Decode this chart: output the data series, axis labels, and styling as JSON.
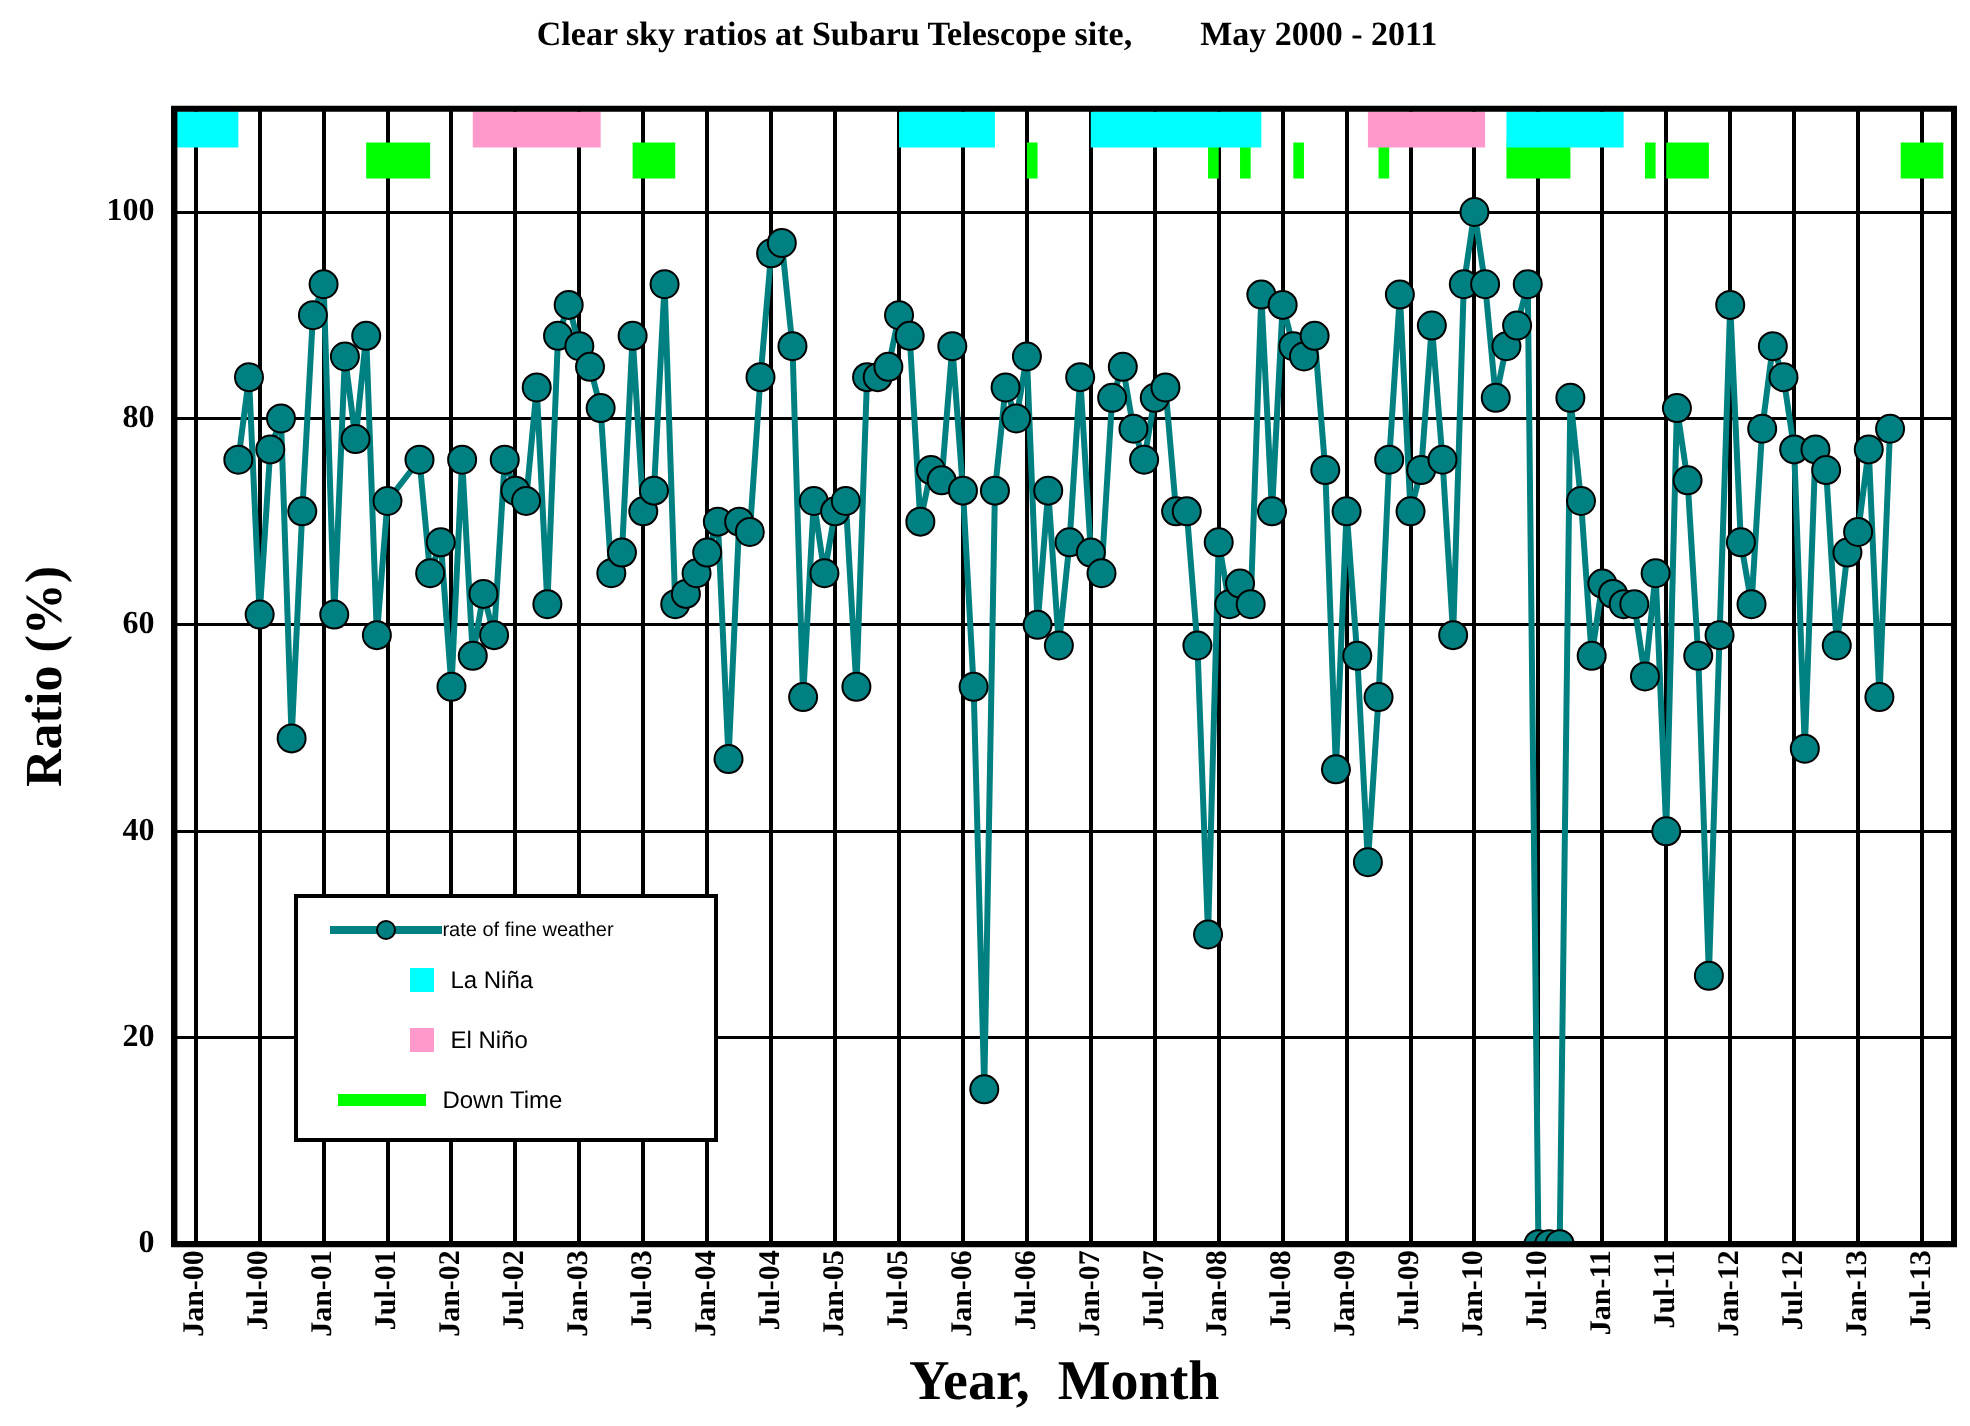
{
  "chart_data": {
    "type": "line",
    "title": "Clear sky ratios at Subaru Telescope site,        May 2000 - 2011",
    "xlabel": "Year,  Month",
    "ylabel": "Ratio (%)",
    "x": [
      "2000-05",
      "2000-06",
      "2000-07",
      "2000-08",
      "2000-09",
      "2000-10",
      "2000-11",
      "2000-12",
      "2001-01",
      "2001-02",
      "2001-03",
      "2001-04",
      "2001-05",
      "2001-06",
      "2001-07",
      "2001-10",
      "2001-11",
      "2001-12",
      "2002-01",
      "2002-02",
      "2002-03",
      "2002-04",
      "2002-05",
      "2002-06",
      "2002-07",
      "2002-08",
      "2002-09",
      "2002-10",
      "2002-11",
      "2002-12",
      "2003-01",
      "2003-02",
      "2003-03",
      "2003-04",
      "2003-05",
      "2003-06",
      "2003-07",
      "2003-08",
      "2003-09",
      "2003-10",
      "2003-11",
      "2003-12",
      "2004-01",
      "2004-02",
      "2004-03",
      "2004-04",
      "2004-05",
      "2004-06",
      "2004-07",
      "2004-08",
      "2004-09",
      "2004-10",
      "2004-11",
      "2004-12",
      "2005-01",
      "2005-02",
      "2005-03",
      "2005-04",
      "2005-05",
      "2005-06",
      "2005-07",
      "2005-08",
      "2005-09",
      "2005-10",
      "2005-11",
      "2005-12",
      "2006-01",
      "2006-02",
      "2006-03",
      "2006-04",
      "2006-05",
      "2006-06",
      "2006-07",
      "2006-08",
      "2006-09",
      "2006-10",
      "2006-11",
      "2006-12",
      "2007-01",
      "2007-02",
      "2007-03",
      "2007-04",
      "2007-05",
      "2007-06",
      "2007-07",
      "2007-08",
      "2007-09",
      "2007-10",
      "2007-11",
      "2007-12",
      "2008-01",
      "2008-02",
      "2008-03",
      "2008-04",
      "2008-05",
      "2008-06",
      "2008-07",
      "2008-08",
      "2008-09",
      "2008-10",
      "2008-11",
      "2008-12",
      "2009-01",
      "2009-02",
      "2009-03",
      "2009-04",
      "2009-05",
      "2009-06",
      "2009-07",
      "2009-08",
      "2009-09",
      "2009-10",
      "2009-11",
      "2009-12",
      "2010-01",
      "2010-02",
      "2010-03",
      "2010-04",
      "2010-05",
      "2010-06",
      "2010-07",
      "2010-08",
      "2010-09",
      "2010-10",
      "2010-11",
      "2010-12",
      "2011-01",
      "2011-02",
      "2011-03",
      "2011-04",
      "2011-05",
      "2011-06",
      "2011-07",
      "2011-08",
      "2011-09",
      "2011-10",
      "2011-11",
      "2011-12",
      "2012-01",
      "2012-02",
      "2012-03",
      "2012-04",
      "2012-05",
      "2012-06",
      "2012-07",
      "2012-08",
      "2012-09",
      "2012-10",
      "2012-11",
      "2012-12",
      "2013-01",
      "2013-02",
      "2013-03",
      "2013-04"
    ],
    "series": [
      {
        "name": "rate of fine weather",
        "color": "#008080",
        "values": [
          76,
          84,
          61,
          77,
          80,
          49,
          71,
          90,
          93,
          61,
          86,
          78,
          88,
          59,
          72,
          76,
          65,
          68,
          54,
          76,
          57,
          63,
          59,
          76,
          73,
          72,
          83,
          62,
          88,
          91,
          87,
          85,
          81,
          65,
          67,
          88,
          71,
          73,
          93,
          62,
          63,
          65,
          67,
          70,
          47,
          70,
          69,
          84,
          96,
          97,
          87,
          53,
          72,
          65,
          71,
          72,
          54,
          84,
          84,
          85,
          90,
          88,
          70,
          75,
          74,
          87,
          73,
          54,
          15,
          73,
          83,
          80,
          86,
          60,
          73,
          58,
          68,
          84,
          67,
          65,
          82,
          85,
          79,
          76,
          82,
          83,
          71,
          71,
          58,
          30,
          68,
          62,
          64,
          62,
          92,
          71,
          91,
          87,
          86,
          88,
          75,
          46,
          71,
          57,
          37,
          53,
          76,
          92,
          71,
          75,
          89,
          76,
          59,
          93,
          100,
          93,
          82,
          87,
          89,
          93,
          0,
          0,
          0,
          82,
          72,
          57,
          64,
          63,
          62,
          62,
          55,
          65,
          40,
          81,
          74,
          57,
          26,
          59,
          91,
          68,
          62,
          79,
          87,
          84,
          77,
          48,
          77,
          75,
          58,
          67,
          69,
          77,
          53,
          79
        ]
      },
      {
        "name": "La Niña",
        "color": "#00ffff",
        "marker": "none",
        "x": [
          "1999-11",
          "2000-05"
        ],
        "values": [
          108,
          108
        ]
      },
      {
        "color": "#00ffff",
        "marker": "none",
        "x": [
          "2005-07",
          "2006-04"
        ],
        "values": [
          108,
          108
        ]
      },
      {
        "color": "#00ffff",
        "marker": "none",
        "x": [
          "2007-01",
          "2008-05"
        ],
        "values": [
          108,
          108
        ]
      },
      {
        "color": "#00ffff",
        "marker": "none",
        "x": [
          "2010-04",
          "2011-03"
        ],
        "values": [
          108,
          108
        ]
      },
      {
        "name": "El Niño",
        "color": "#ff99cc",
        "marker": "none",
        "x": [
          "2002-03",
          "2003-03"
        ],
        "values": [
          108,
          108
        ]
      },
      {
        "color": "#ff99cc",
        "marker": "none",
        "x": [
          "2009-03",
          "2010-02"
        ],
        "values": [
          108,
          108
        ]
      },
      {
        "name": "Down Time",
        "color": "#00ff00",
        "marker": "none",
        "line_style": "solid",
        "x": [
          "2001-05",
          "2001-11"
        ],
        "values": [
          105,
          105
        ]
      },
      {
        "color": "#00ff00",
        "marker": "none",
        "line_style": "solid",
        "x": [
          "2003-06",
          "2003-10"
        ],
        "values": [
          105,
          105
        ]
      },
      {
        "color": "#00ff00",
        "marker": "none",
        "line_style": "solid",
        "x": [
          "2006-07",
          "2006-08"
        ],
        "values": [
          105,
          105
        ]
      },
      {
        "color": "#00ff00",
        "marker": "none",
        "line_style": "solid",
        "x": [
          "2007-12",
          "2008-01"
        ],
        "values": [
          105,
          105
        ]
      },
      {
        "color": "#00ff00",
        "marker": "none",
        "line_style": "solid",
        "x": [
          "2008-03",
          "2008-04"
        ],
        "values": [
          105,
          105
        ]
      },
      {
        "color": "#00ff00",
        "marker": "none",
        "line_style": "solid",
        "x": [
          "2008-08",
          "2008-09"
        ],
        "values": [
          105,
          105
        ]
      },
      {
        "color": "#00ff00",
        "marker": "none",
        "line_style": "solid",
        "x": [
          "2009-04",
          "2009-05"
        ],
        "values": [
          105,
          105
        ]
      },
      {
        "color": "#00ff00",
        "marker": "none",
        "line_style": "solid",
        "x": [
          "2010-04",
          "2010-10"
        ],
        "values": [
          105,
          105
        ]
      },
      {
        "color": "#00ff00",
        "marker": "none",
        "line_style": "solid",
        "x": [
          "2011-05",
          "2011-06"
        ],
        "values": [
          105,
          105
        ]
      },
      {
        "color": "#00ff00",
        "marker": "none",
        "line_style": "solid",
        "x": [
          "2011-07",
          "2011-11"
        ],
        "values": [
          105,
          105
        ]
      },
      {
        "color": "#00ff00",
        "marker": "none",
        "line_style": "solid",
        "x": [
          "2013-05",
          "2013-09"
        ],
        "values": [
          105,
          105
        ]
      }
    ],
    "xlim": [
      "1999-11",
      "2013-10"
    ],
    "xticks": [
      {
        "value": "2000-01",
        "label": "Jan-00"
      },
      {
        "value": "2000-07",
        "label": "Jul-00"
      },
      {
        "value": "2001-01",
        "label": "Jan-01"
      },
      {
        "value": "2001-07",
        "label": "Jul-01"
      },
      {
        "value": "2002-01",
        "label": "Jan-02"
      },
      {
        "value": "2002-07",
        "label": "Jul-02"
      },
      {
        "value": "2003-01",
        "label": "Jan-03"
      },
      {
        "value": "2003-07",
        "label": "Jul-03"
      },
      {
        "value": "2004-01",
        "label": "Jan-04"
      },
      {
        "value": "2004-07",
        "label": "Jul-04"
      },
      {
        "value": "2005-01",
        "label": "Jan-05"
      },
      {
        "value": "2005-07",
        "label": "Jul-05"
      },
      {
        "value": "2006-01",
        "label": "Jan-06"
      },
      {
        "value": "2006-07",
        "label": "Jul-06"
      },
      {
        "value": "2007-01",
        "label": "Jan-07"
      },
      {
        "value": "2007-07",
        "label": "Jul-07"
      },
      {
        "value": "2008-01",
        "label": "Jan-08"
      },
      {
        "value": "2008-07",
        "label": "Jul-08"
      },
      {
        "value": "2009-01",
        "label": "Jan-09"
      },
      {
        "value": "2009-07",
        "label": "Jul-09"
      },
      {
        "value": "2010-01",
        "label": "Jan-10"
      },
      {
        "value": "2010-07",
        "label": "Jul-10"
      },
      {
        "value": "2011-01",
        "label": "Jan-11"
      },
      {
        "value": "2011-07",
        "label": "Jul-11"
      },
      {
        "value": "2012-01",
        "label": "Jan-12"
      },
      {
        "value": "2012-07",
        "label": "Jul-12"
      },
      {
        "value": "2013-01",
        "label": "Jan-13"
      },
      {
        "value": "2013-07",
        "label": "Jul-13"
      }
    ],
    "ylim": [
      0,
      110
    ],
    "yticks": [
      0,
      20,
      40,
      60,
      80,
      100
    ],
    "grid": true,
    "legend": "bottom left",
    "marker": "circle",
    "line_style": "solid"
  }
}
